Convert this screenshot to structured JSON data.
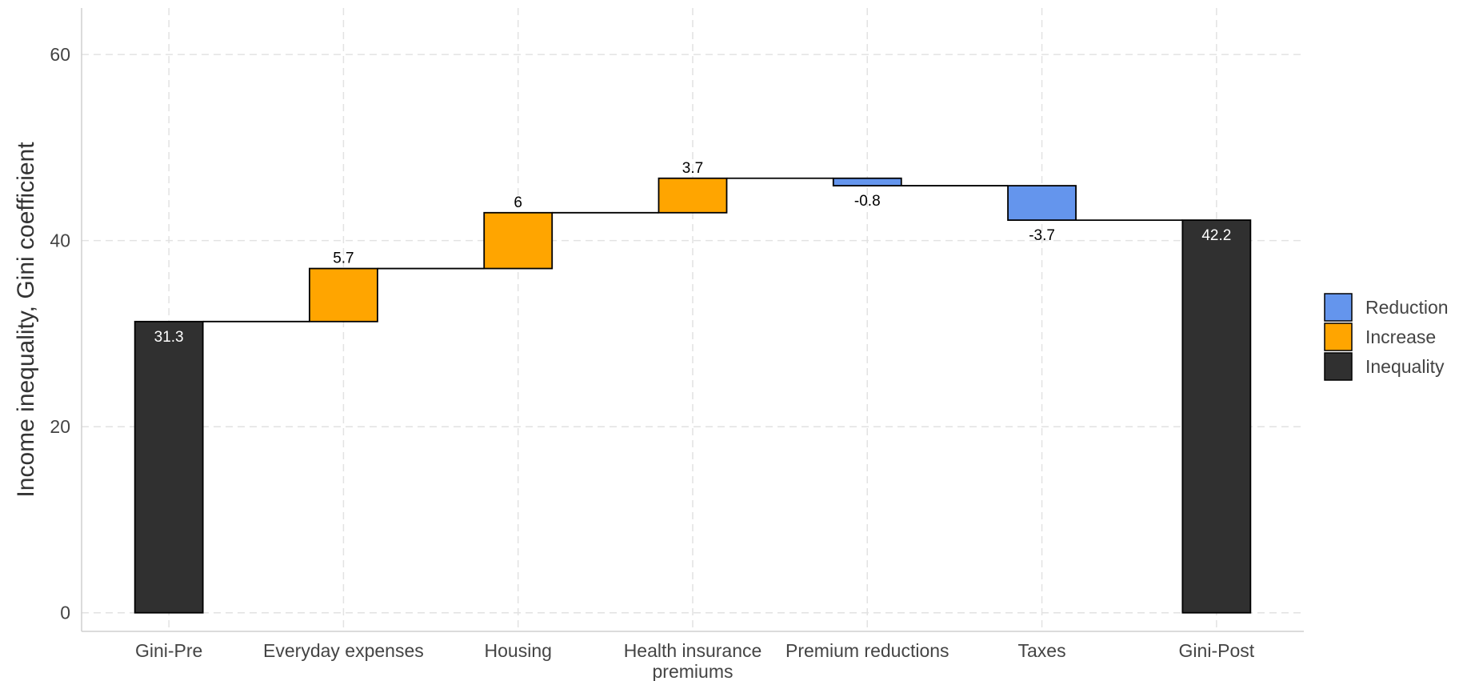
{
  "chart_data": {
    "type": "bar",
    "subtype": "waterfall",
    "ylabel": "Income inequality, Gini coefficient",
    "ylim": [
      -2,
      65
    ],
    "yticks": [
      0,
      20,
      40,
      60
    ],
    "grid": true,
    "legend_placement": "right",
    "categories": [
      "Gini-Pre",
      "Everyday expenses",
      "Housing",
      "Health insurance premiums",
      "Premium reductions",
      "Taxes",
      "Gini-Post"
    ],
    "category_label_lines": [
      [
        "Gini-Pre"
      ],
      [
        "Everyday expenses"
      ],
      [
        "Housing"
      ],
      [
        "Health insurance",
        "premiums"
      ],
      [
        "Premium reductions"
      ],
      [
        "Taxes"
      ],
      [
        "Gini-Post"
      ]
    ],
    "values": [
      31.3,
      5.7,
      6,
      3.7,
      -0.8,
      -3.7,
      42.2
    ],
    "value_labels": [
      "31.3",
      "5.7",
      "6",
      "3.7",
      "-0.8",
      "-3.7",
      "42.2"
    ],
    "bar_types": [
      "Inequality",
      "Increase",
      "Increase",
      "Increase",
      "Reduction",
      "Reduction",
      "Inequality"
    ],
    "legend": [
      {
        "name": "Reduction",
        "color": "#6495ED"
      },
      {
        "name": "Increase",
        "color": "#FFA500"
      },
      {
        "name": "Inequality",
        "color": "#303030"
      }
    ]
  }
}
